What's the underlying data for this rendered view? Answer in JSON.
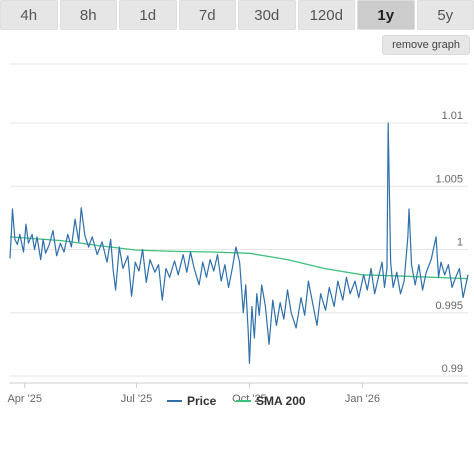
{
  "timeframe_tabs": [
    {
      "label": "4h",
      "active": false
    },
    {
      "label": "8h",
      "active": false
    },
    {
      "label": "1d",
      "active": false
    },
    {
      "label": "7d",
      "active": false
    },
    {
      "label": "30d",
      "active": false
    },
    {
      "label": "120d",
      "active": false
    },
    {
      "label": "1y",
      "active": true
    },
    {
      "label": "5y",
      "active": false
    }
  ],
  "remove_graph_label": "remove graph",
  "colors": {
    "price": "#2f6fab",
    "sma": "#3cc17c",
    "grid": "#e6e6e6",
    "axis": "#cccccc"
  },
  "chart_data": {
    "type": "line",
    "ylim": [
      0.99,
      1.01
    ],
    "yticks": [
      {
        "value": 0.99,
        "label": "0.99"
      },
      {
        "value": 0.995,
        "label": "0.995"
      },
      {
        "value": 1.0,
        "label": "1"
      },
      {
        "value": 1.005,
        "label": "1.005"
      },
      {
        "value": 1.01,
        "label": "1.01"
      }
    ],
    "xlim": [
      "2025-03-20",
      "2026-03-28"
    ],
    "xticks": [
      {
        "date": "2025-04-01",
        "label": "Apr '25"
      },
      {
        "date": "2025-07-01",
        "label": "Jul '25"
      },
      {
        "date": "2025-10-01",
        "label": "Oct '25"
      },
      {
        "date": "2026-01-01",
        "label": "Jan '26"
      }
    ],
    "grid": true,
    "legend_position": "bottom-center",
    "series": [
      {
        "name": "Price",
        "points": [
          [
            "2025-03-20",
            0.9993
          ],
          [
            "2025-03-21",
            1.0011
          ],
          [
            "2025-03-22",
            1.0032
          ],
          [
            "2025-03-24",
            1.0008
          ],
          [
            "2025-03-26",
            1.0004
          ],
          [
            "2025-03-28",
            1.0012
          ],
          [
            "2025-03-31",
            0.9998
          ],
          [
            "2025-04-02",
            1.002
          ],
          [
            "2025-04-04",
            1.0005
          ],
          [
            "2025-04-07",
            1.0012
          ],
          [
            "2025-04-09",
            1.0
          ],
          [
            "2025-04-11",
            1.001
          ],
          [
            "2025-04-14",
            0.9992
          ],
          [
            "2025-04-16",
            1.0008
          ],
          [
            "2025-04-18",
            0.9997
          ],
          [
            "2025-04-21",
            1.0004
          ],
          [
            "2025-04-24",
            1.0015
          ],
          [
            "2025-04-27",
            0.9995
          ],
          [
            "2025-04-30",
            1.0005
          ],
          [
            "2025-05-03",
            0.9998
          ],
          [
            "2025-05-06",
            1.0012
          ],
          [
            "2025-05-09",
            1.0002
          ],
          [
            "2025-05-12",
            1.0024
          ],
          [
            "2025-05-15",
            1.0006
          ],
          [
            "2025-05-17",
            1.0033
          ],
          [
            "2025-05-20",
            1.0011
          ],
          [
            "2025-05-23",
            1.0002
          ],
          [
            "2025-05-26",
            1.001
          ],
          [
            "2025-05-30",
            0.9996
          ],
          [
            "2025-06-03",
            1.0006
          ],
          [
            "2025-06-07",
            0.999
          ],
          [
            "2025-06-10",
            1.0008
          ],
          [
            "2025-06-12",
            0.9984
          ],
          [
            "2025-06-14",
            0.9968
          ],
          [
            "2025-06-17",
            1.0002
          ],
          [
            "2025-06-20",
            0.9985
          ],
          [
            "2025-06-24",
            0.9995
          ],
          [
            "2025-06-27",
            0.9963
          ],
          [
            "2025-06-30",
            0.999
          ],
          [
            "2025-07-03",
            0.9983
          ],
          [
            "2025-07-06",
            1.0
          ],
          [
            "2025-07-09",
            0.9974
          ],
          [
            "2025-07-12",
            0.9992
          ],
          [
            "2025-07-16",
            0.9982
          ],
          [
            "2025-07-19",
            0.9988
          ],
          [
            "2025-07-22",
            0.996
          ],
          [
            "2025-07-25",
            0.9985
          ],
          [
            "2025-07-28",
            0.9978
          ],
          [
            "2025-08-01",
            0.9991
          ],
          [
            "2025-08-04",
            0.998
          ],
          [
            "2025-08-08",
            0.9996
          ],
          [
            "2025-08-11",
            0.9982
          ],
          [
            "2025-08-14",
            0.9998
          ],
          [
            "2025-08-17",
            0.9985
          ],
          [
            "2025-08-21",
            0.9972
          ],
          [
            "2025-08-24",
            0.999
          ],
          [
            "2025-08-27",
            0.9978
          ],
          [
            "2025-08-30",
            0.9992
          ],
          [
            "2025-09-02",
            0.9983
          ],
          [
            "2025-09-05",
            0.9996
          ],
          [
            "2025-09-08",
            0.9975
          ],
          [
            "2025-09-11",
            0.9988
          ],
          [
            "2025-09-14",
            0.997
          ],
          [
            "2025-09-17",
            0.9985
          ],
          [
            "2025-09-20",
            1.0002
          ],
          [
            "2025-09-23",
            0.999
          ],
          [
            "2025-09-26",
            0.995
          ],
          [
            "2025-09-28",
            0.9972
          ],
          [
            "2025-09-30",
            0.9935
          ],
          [
            "2025-10-01",
            0.991
          ],
          [
            "2025-10-03",
            0.9955
          ],
          [
            "2025-10-05",
            0.993
          ],
          [
            "2025-10-07",
            0.9965
          ],
          [
            "2025-10-09",
            0.9948
          ],
          [
            "2025-10-11",
            0.9972
          ],
          [
            "2025-10-14",
            0.9955
          ],
          [
            "2025-10-17",
            0.9925
          ],
          [
            "2025-10-20",
            0.996
          ],
          [
            "2025-10-23",
            0.994
          ],
          [
            "2025-10-26",
            0.9958
          ],
          [
            "2025-10-29",
            0.9945
          ],
          [
            "2025-11-01",
            0.9968
          ],
          [
            "2025-11-04",
            0.995
          ],
          [
            "2025-11-08",
            0.9938
          ],
          [
            "2025-11-12",
            0.9962
          ],
          [
            "2025-11-15",
            0.9948
          ],
          [
            "2025-11-18",
            0.9975
          ],
          [
            "2025-11-21",
            0.996
          ],
          [
            "2025-11-25",
            0.994
          ],
          [
            "2025-11-28",
            0.9965
          ],
          [
            "2025-12-02",
            0.9952
          ],
          [
            "2025-12-05",
            0.997
          ],
          [
            "2025-12-09",
            0.9955
          ],
          [
            "2025-12-12",
            0.9975
          ],
          [
            "2025-12-16",
            0.996
          ],
          [
            "2025-12-19",
            0.9978
          ],
          [
            "2025-12-22",
            0.9965
          ],
          [
            "2025-12-26",
            0.9975
          ],
          [
            "2025-12-29",
            0.9962
          ],
          [
            "2026-01-02",
            0.998
          ],
          [
            "2026-01-05",
            0.9968
          ],
          [
            "2026-01-08",
            0.9985
          ],
          [
            "2026-01-11",
            0.9965
          ],
          [
            "2026-01-14",
            0.9978
          ],
          [
            "2026-01-17",
            0.999
          ],
          [
            "2026-01-19",
            0.997
          ],
          [
            "2026-01-21",
            0.9985
          ],
          [
            "2026-01-22",
            1.01
          ],
          [
            "2026-01-24",
            0.999
          ],
          [
            "2026-01-26",
            0.997
          ],
          [
            "2026-01-29",
            0.9982
          ],
          [
            "2026-02-01",
            0.9965
          ],
          [
            "2026-02-04",
            0.9975
          ],
          [
            "2026-02-07",
            1.001
          ],
          [
            "2026-02-08",
            1.0032
          ],
          [
            "2026-02-10",
            0.9988
          ],
          [
            "2026-02-13",
            0.9972
          ],
          [
            "2026-02-16",
            0.9988
          ],
          [
            "2026-02-19",
            0.9968
          ],
          [
            "2026-02-22",
            0.9982
          ],
          [
            "2026-02-26",
            0.9992
          ],
          [
            "2026-03-02",
            1.001
          ],
          [
            "2026-03-04",
            0.9978
          ],
          [
            "2026-03-06",
            0.999
          ],
          [
            "2026-03-09",
            0.998
          ],
          [
            "2026-03-12",
            0.9988
          ],
          [
            "2026-03-15",
            0.997
          ],
          [
            "2026-03-18",
            0.9978
          ],
          [
            "2026-03-21",
            0.9985
          ],
          [
            "2026-03-24",
            0.9962
          ],
          [
            "2026-03-28",
            0.998
          ]
        ]
      },
      {
        "name": "SMA 200",
        "points": [
          [
            "2025-03-20",
            1.001
          ],
          [
            "2025-05-01",
            1.0007
          ],
          [
            "2025-06-01",
            1.0003
          ],
          [
            "2025-07-01",
            0.99995
          ],
          [
            "2025-08-01",
            0.99985
          ],
          [
            "2025-09-01",
            0.9998
          ],
          [
            "2025-10-01",
            0.9997
          ],
          [
            "2025-11-01",
            0.9992
          ],
          [
            "2025-12-01",
            0.9985
          ],
          [
            "2026-01-01",
            0.998
          ],
          [
            "2026-02-01",
            0.9979
          ],
          [
            "2026-03-28",
            0.9977
          ]
        ]
      }
    ]
  }
}
